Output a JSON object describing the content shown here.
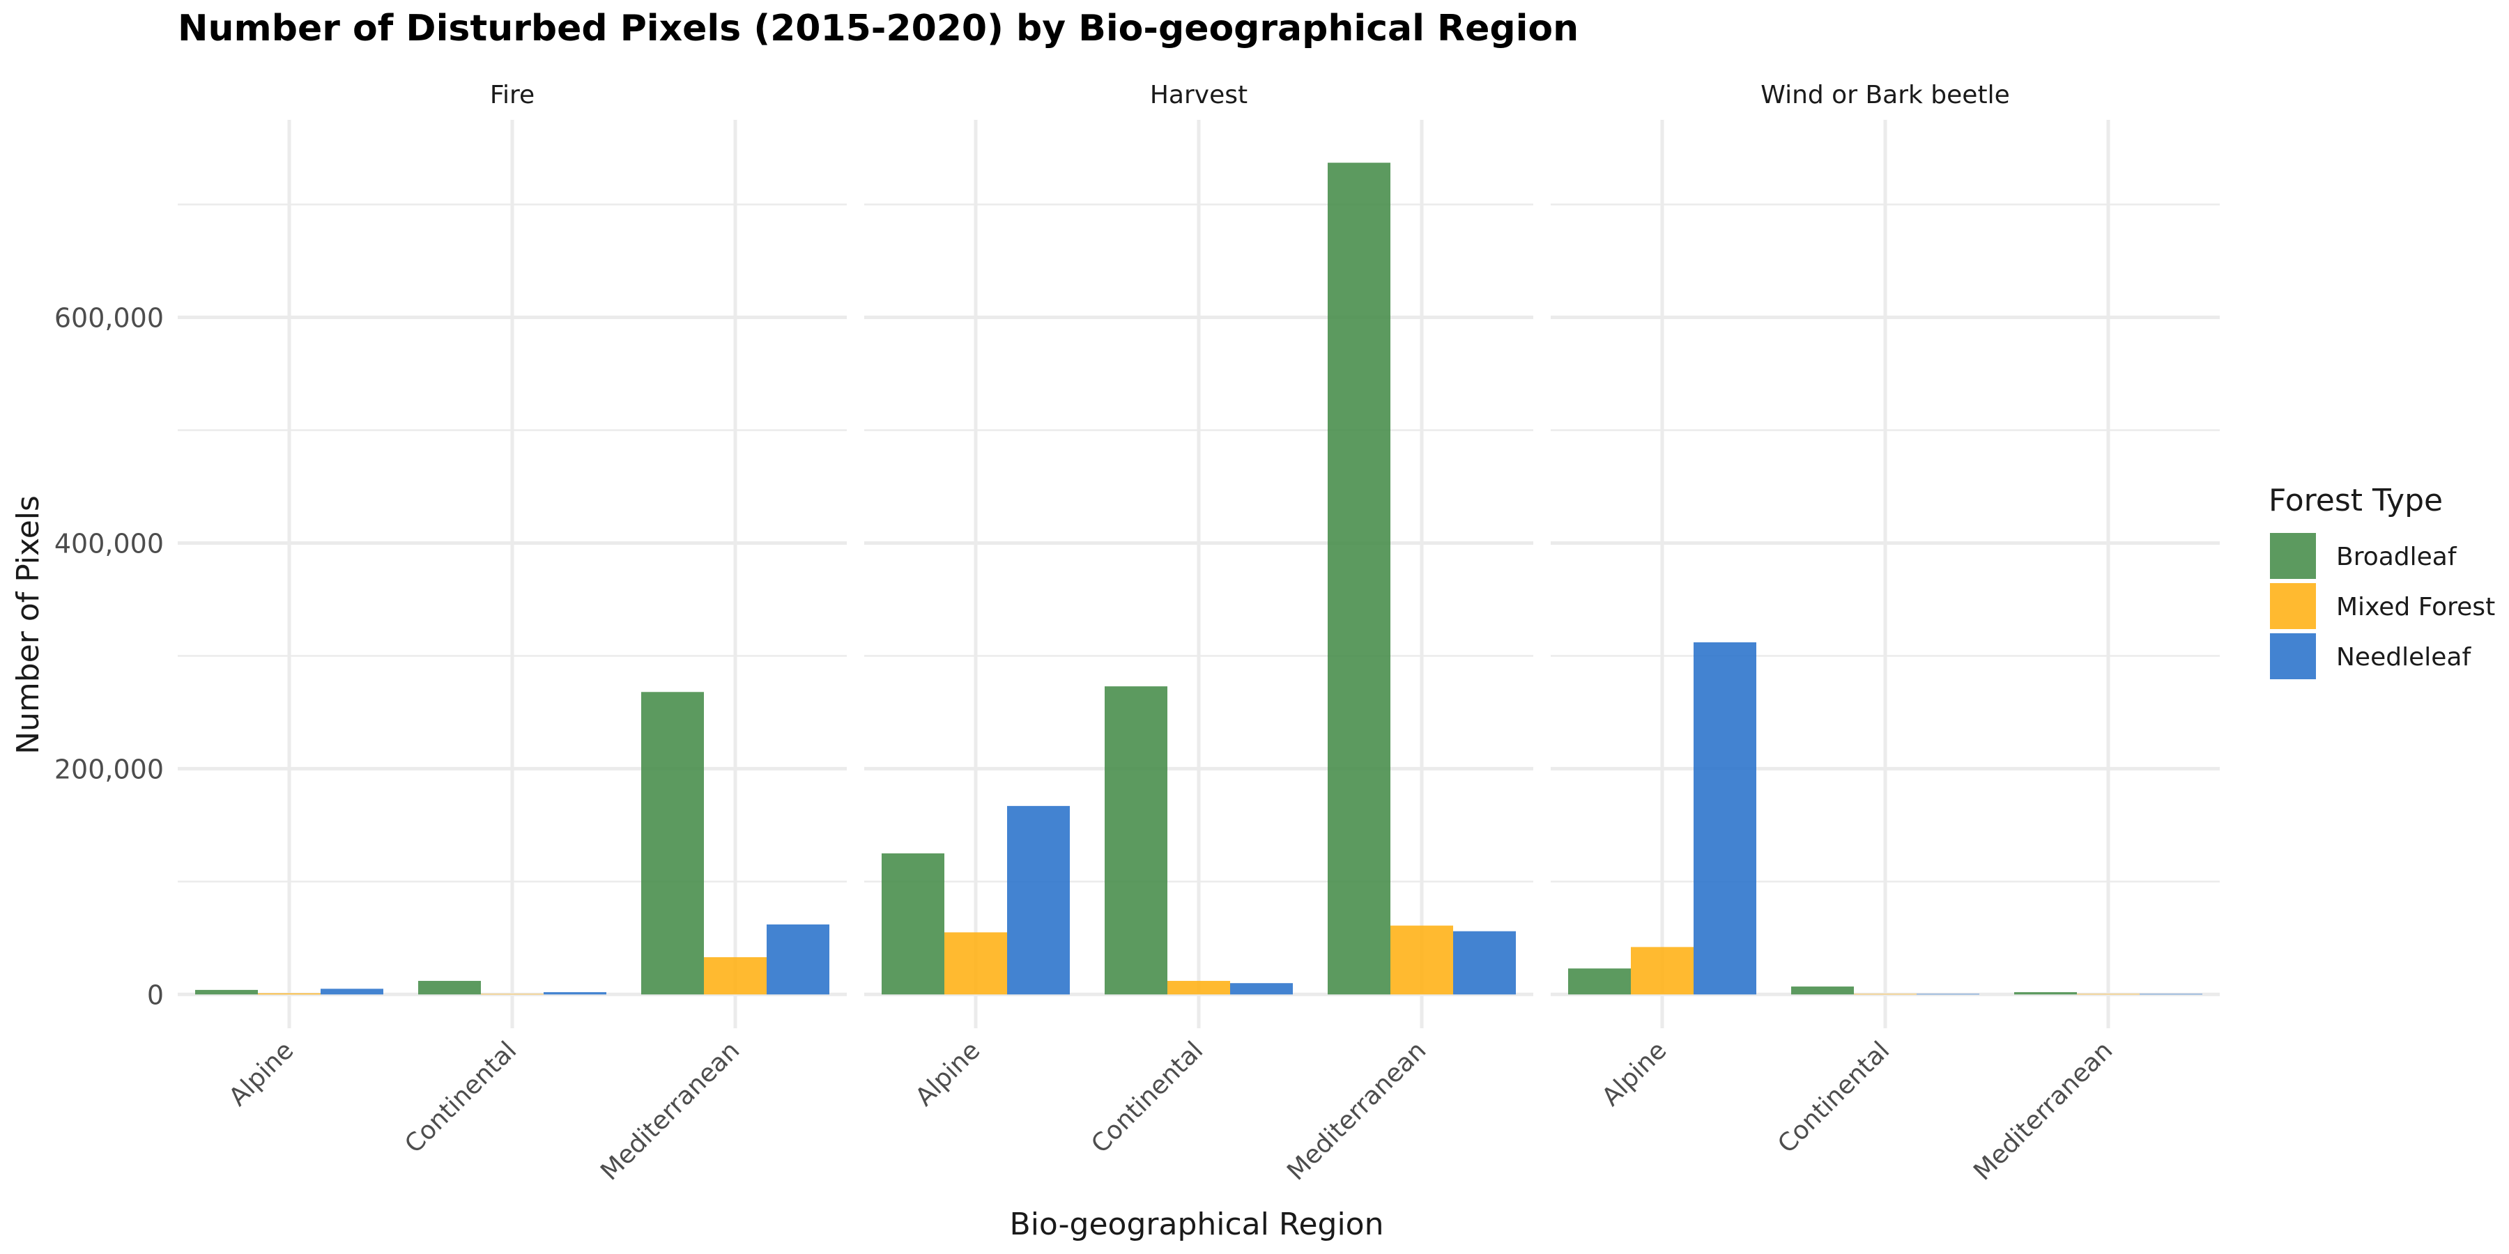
{
  "chart_data": {
    "type": "bar",
    "title": "Number of Disturbed Pixels (2015-2020) by Bio-geographical Region",
    "xlabel": "Bio-geographical Region",
    "ylabel": "Number of Pixels",
    "ylim": [
      -30000,
      775000
    ],
    "yticks": [
      0,
      200000,
      400000,
      600000
    ],
    "ytick_labels": [
      "0",
      "200,000",
      "400,000",
      "600,000"
    ],
    "grid": true,
    "legend_position": "right",
    "legend_title": "Forest Type",
    "categories": [
      "Alpine",
      "Continental",
      "Mediterranean"
    ],
    "facets": [
      {
        "title": "Fire",
        "series": [
          {
            "name": "Broadleaf",
            "values": [
              4000,
              12000,
              268000
            ]
          },
          {
            "name": "Mixed Forest",
            "values": [
              1000,
              500,
              33000
            ]
          },
          {
            "name": "Needleleaf",
            "values": [
              5000,
              2000,
              62000
            ]
          }
        ]
      },
      {
        "title": "Harvest",
        "series": [
          {
            "name": "Broadleaf",
            "values": [
              125000,
              273000,
              737000
            ]
          },
          {
            "name": "Mixed Forest",
            "values": [
              55000,
              12000,
              61000
            ]
          },
          {
            "name": "Needleleaf",
            "values": [
              167000,
              10000,
              56000
            ]
          }
        ]
      },
      {
        "title": "Wind or Bark beetle",
        "series": [
          {
            "name": "Broadleaf",
            "values": [
              23000,
              7000,
              2000
            ]
          },
          {
            "name": "Mixed Forest",
            "values": [
              42000,
              500,
              500
            ]
          },
          {
            "name": "Needleleaf",
            "values": [
              312000,
              500,
              500
            ]
          }
        ]
      }
    ],
    "colors": {
      "Broadleaf": "#4a8f4e",
      "Mixed Forest": "#ffb31a",
      "Needleleaf": "#2f76cc"
    }
  }
}
